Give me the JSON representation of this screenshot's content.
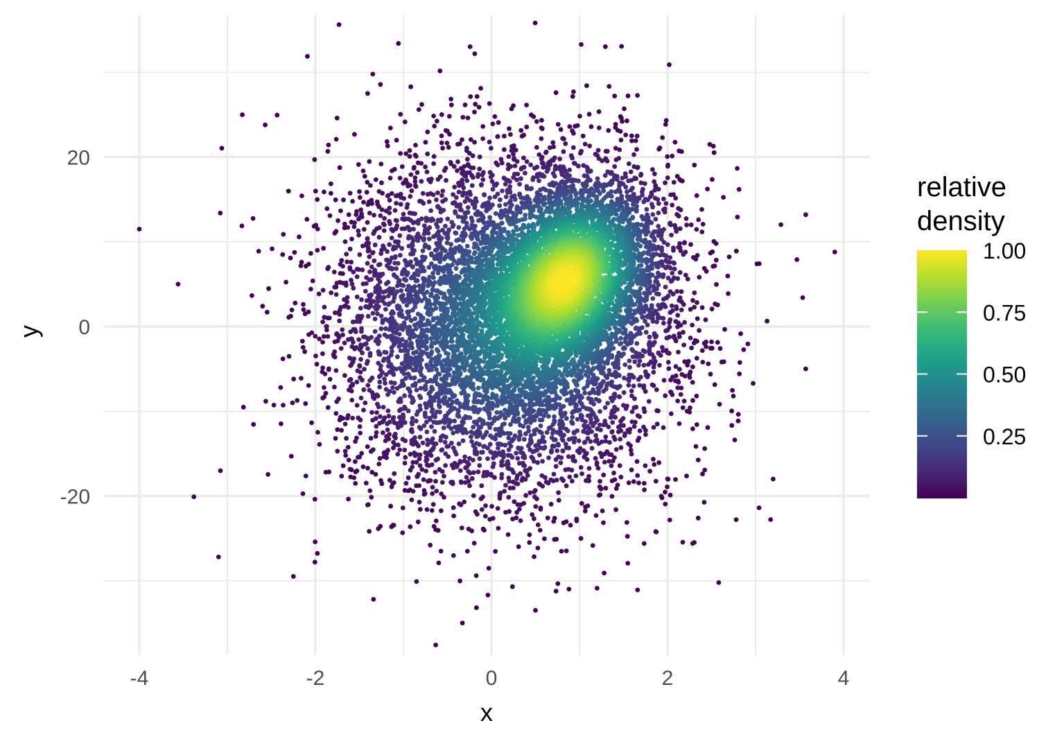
{
  "chart_data": {
    "type": "scatter",
    "title": "",
    "xlabel": "x",
    "ylabel": "y",
    "xlim": [
      -4.2,
      4.3
    ],
    "ylim": [
      -38,
      37
    ],
    "x_ticks": [
      -4,
      -2,
      0,
      2,
      4
    ],
    "x_tick_labels": [
      "-4",
      "-2",
      "0",
      "2",
      "4"
    ],
    "y_ticks": [
      -20,
      0,
      20
    ],
    "y_tick_labels": [
      "-20",
      "0",
      "20"
    ],
    "grid": true,
    "legend": {
      "title_lines": [
        "relative",
        "density"
      ],
      "placement": "right",
      "colormap": "viridis",
      "range": [
        0,
        1
      ],
      "ticks": [
        0.25,
        0.5,
        0.75,
        1.0
      ],
      "tick_labels": [
        "0.25",
        "0.50",
        "0.75",
        "1.00"
      ]
    },
    "colors": {
      "grid": "#ebebeb",
      "tick_text": "#4d4d4d",
      "viridis_low": "#440154",
      "viridis_high": "#fde725"
    },
    "dense_region_peak": {
      "x": 0.9,
      "y": 6
    },
    "points": [
      {
        "x": -4.0,
        "y": 11.5
      },
      {
        "x": 3.9,
        "y": 8.8
      },
      {
        "x": 3.57,
        "y": 13.2
      },
      {
        "x": 1.02,
        "y": 33.3
      },
      {
        "x": -0.33,
        "y": -35.0
      },
      {
        "x": 0.5,
        "y": -33.5
      },
      {
        "x": -2.25,
        "y": -29.5
      },
      {
        "x": -3.1,
        "y": -27.2
      },
      {
        "x": 3.2,
        "y": -18.0
      },
      {
        "x": -3.38,
        "y": -20.1
      },
      {
        "x": 2.02,
        "y": 30.9
      },
      {
        "x": -0.19,
        "y": 32.2
      },
      {
        "x": -2.83,
        "y": 25.0
      },
      {
        "x": -2.57,
        "y": 23.8
      },
      {
        "x": 2.48,
        "y": 21.5
      },
      {
        "x": -3.56,
        "y": 5.0
      },
      {
        "x": 3.47,
        "y": 7.9
      },
      {
        "x": 3.57,
        "y": -5.0
      },
      {
        "x": 2.78,
        "y": -22.8
      },
      {
        "x": 1.66,
        "y": -31.1
      },
      {
        "x": 0.88,
        "y": -31.0
      },
      {
        "x": -1.34,
        "y": -32.2
      },
      {
        "x": -0.04,
        "y": -31.7
      },
      {
        "x": 1.28,
        "y": -29.1
      },
      {
        "x": -3.08,
        "y": 13.4
      },
      {
        "x": 3.04,
        "y": -21.4
      }
    ]
  }
}
